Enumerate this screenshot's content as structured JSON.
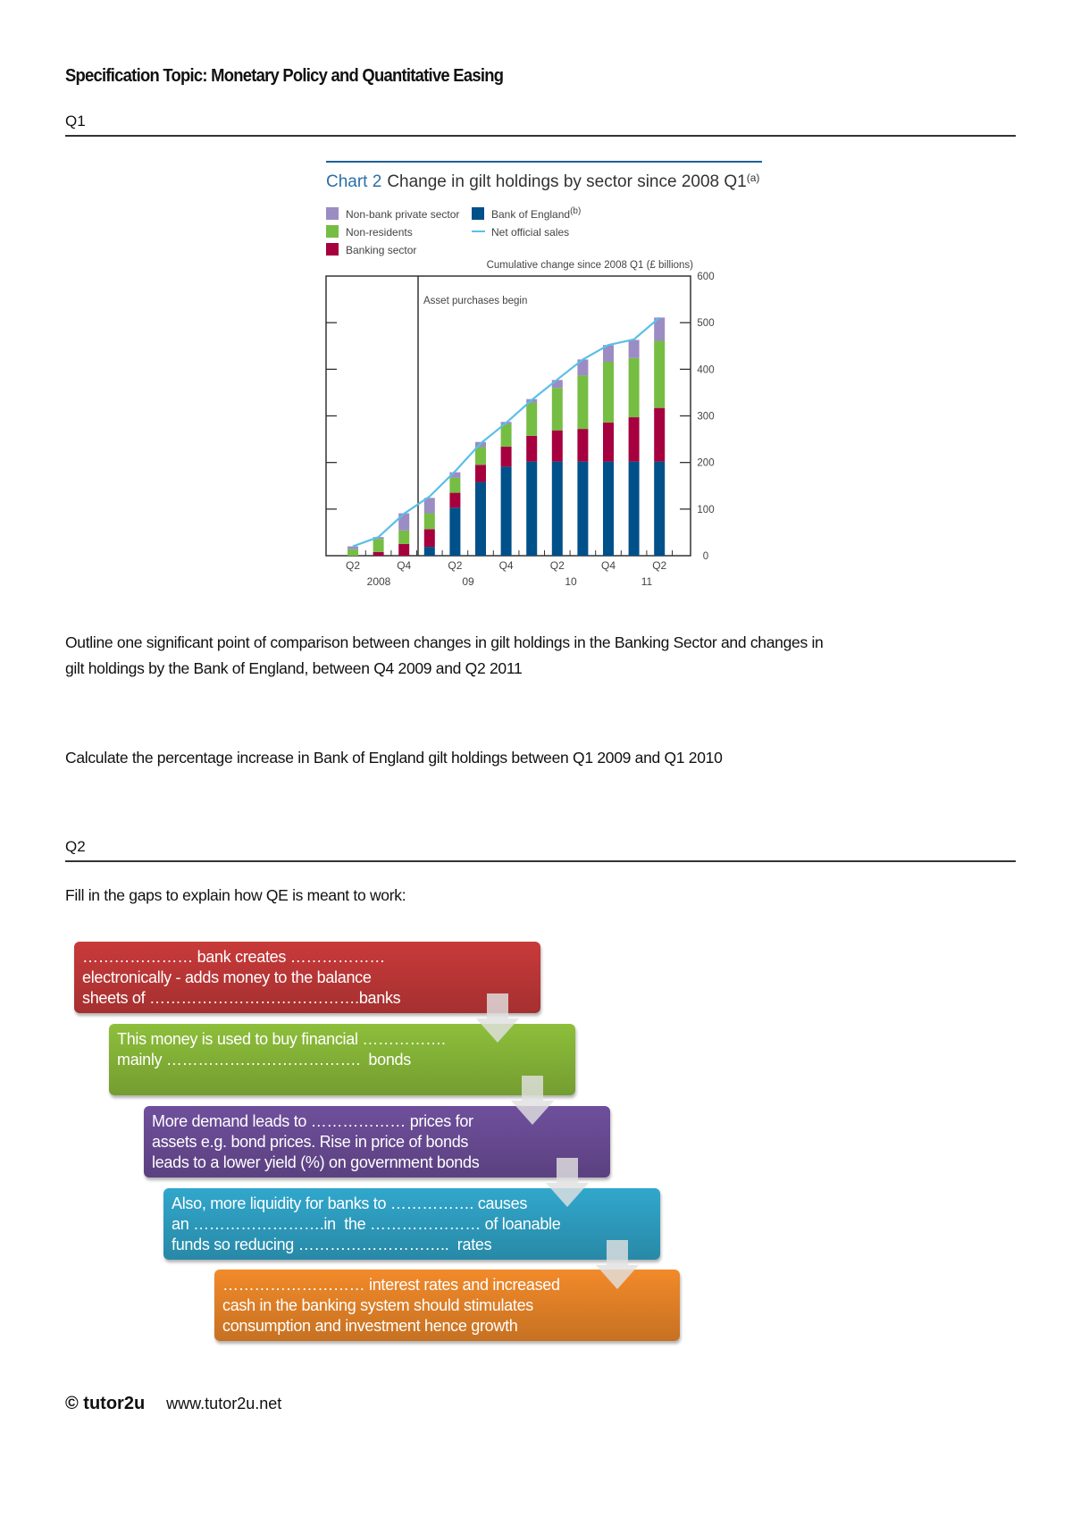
{
  "header": {
    "title": "Specification Topic: Monetary Policy and Quantitative Easing"
  },
  "q1": {
    "label": "Q1",
    "question_a_line1": "Outline one significant point of comparison between changes in gilt holdings in the Banking Sector and changes in",
    "question_a_line2": "gilt holdings by the Bank of England, between Q4 2009 and Q2 2011",
    "question_b": "Calculate the percentage increase in Bank of England gilt holdings between Q1 2009 and Q1 2010"
  },
  "chart_data": {
    "type": "bar",
    "stacked": true,
    "title_prefix": "Chart 2",
    "title": "Change in gilt holdings by sector since 2008 Q1",
    "title_note": "(a)",
    "ylabel": "Cumulative change since 2008 Q1 (£ billions)",
    "ylim": [
      0,
      600
    ],
    "yticks": [
      "0",
      "100",
      "200",
      "300",
      "400",
      "500",
      "600"
    ],
    "annotation": "Asset purchases begin",
    "categories": [
      "2008 Q2",
      "2008 Q3",
      "2008 Q4",
      "2009 Q1",
      "2009 Q2",
      "2009 Q3",
      "2009 Q4",
      "2010 Q1",
      "2010 Q2",
      "2010 Q3",
      "2010 Q4",
      "2011 Q1",
      "2011 Q2"
    ],
    "xtick_labels": [
      "Q2",
      "Q4",
      "Q2",
      "Q4",
      "Q2",
      "Q4",
      "Q2"
    ],
    "year_labels": [
      "2008",
      "09",
      "10",
      "11"
    ],
    "series": [
      {
        "name": "Bank of England",
        "note": "(b)",
        "color": "#00508a",
        "values": [
          0,
          0,
          0,
          19,
          103,
          158,
          191,
          202,
          202,
          202,
          202,
          202,
          202
        ]
      },
      {
        "name": "Banking sector",
        "color": "#a6003f",
        "values": [
          0,
          8,
          25,
          38,
          32,
          37,
          43,
          55,
          67,
          70,
          84,
          95,
          115
        ]
      },
      {
        "name": "Non-residents",
        "color": "#76bd43",
        "values": [
          14,
          28,
          29,
          34,
          32,
          38,
          48,
          71,
          91,
          115,
          130,
          127,
          144
        ]
      },
      {
        "name": "Non-bank private sector",
        "color": "#9b8cc4",
        "values": [
          6,
          4,
          37,
          33,
          12,
          11,
          5,
          8,
          17,
          34,
          36,
          39,
          50
        ]
      }
    ],
    "line": {
      "name": "Net official sales",
      "color": "#5bbfe8",
      "values": [
        20,
        40,
        90,
        127,
        181,
        241,
        285,
        334,
        378,
        421,
        452,
        464,
        511
      ]
    },
    "legend_order": [
      "Non-bank private sector",
      "Non-residents",
      "Banking sector",
      "Bank of England",
      "Net official sales"
    ],
    "grid": false,
    "legend_placement": "top-left"
  },
  "q2": {
    "label": "Q2",
    "instruction": "Fill in the gaps to explain how QE is meant to work:",
    "steps": [
      {
        "color": "#c93a3a",
        "lines": [
          "………………… bank creates ………………",
          "electronically - adds money to the balance",
          "sheets of ………………………………….banks"
        ]
      },
      {
        "color": "#8ebf3b",
        "lines": [
          "This money is used to buy financial …………….",
          "mainly ……………………………….  bonds"
        ]
      },
      {
        "color": "#6f4f9c",
        "lines": [
          "More demand leads to ……………… prices for",
          "assets e.g. bond prices. Rise in price of bonds",
          "leads to a lower yield (%) on government bonds"
        ]
      },
      {
        "color": "#31a7cc",
        "lines": [
          "Also, more liquidity for banks to ……………. causes",
          "an …………………….in  the ………………… of loanable",
          "funds so reducing ………………………..  rates"
        ]
      },
      {
        "color": "#f28a2a",
        "lines": [
          "……………………… interest rates and increased",
          "cash in the banking system should stimulates",
          "consumption and investment hence growth"
        ]
      }
    ]
  },
  "footer": {
    "copyright": "© tutor2u",
    "url": "www.tutor2u.net"
  }
}
